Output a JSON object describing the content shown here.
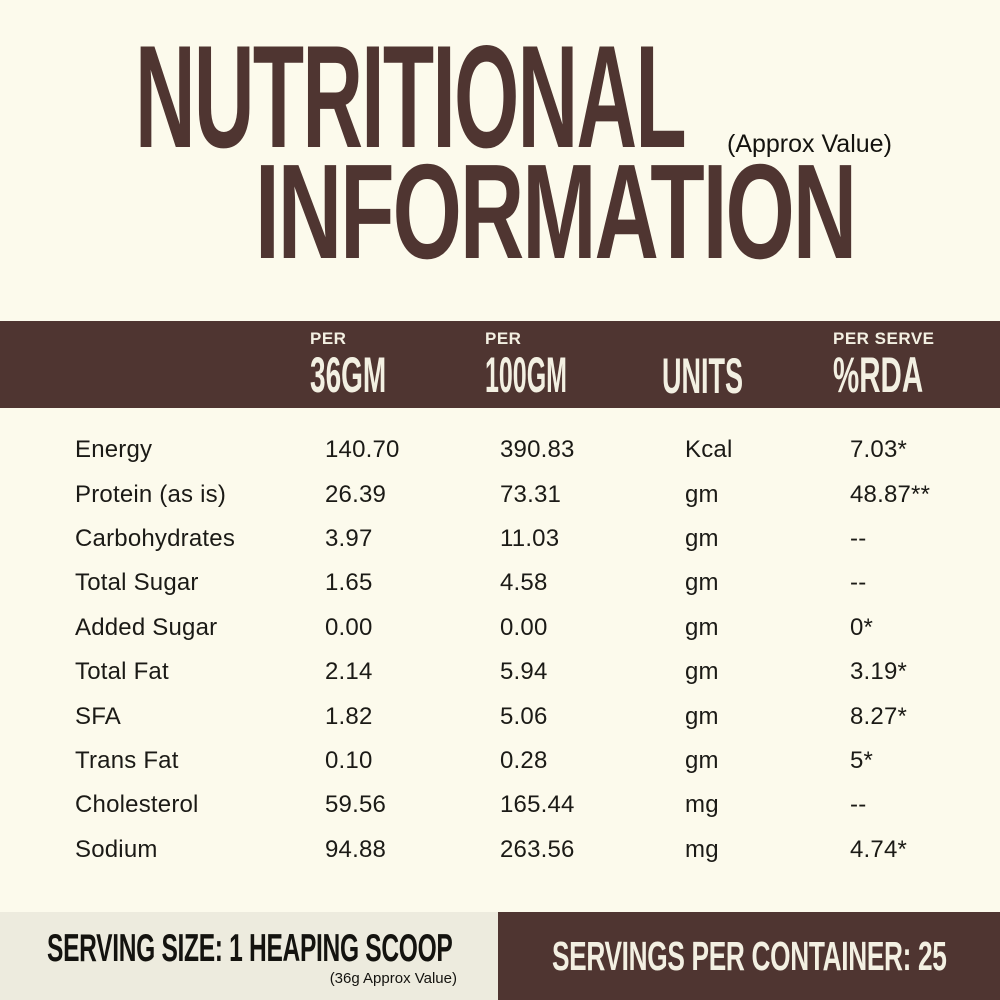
{
  "title": {
    "line1": "NUTRITIONAL",
    "line2": "INFORMATION",
    "approx_note": "(Approx Value)"
  },
  "table": {
    "headers": {
      "per36_top": "PER",
      "per36": "36GM",
      "per100_top": "PER",
      "per100": "100GM",
      "units": "UNITS",
      "rda_top": "PER SERVE",
      "rda": "%RDA"
    },
    "rows": [
      {
        "label": "Energy",
        "per36": "140.70",
        "per100": "390.83",
        "unit": "Kcal",
        "rda": "7.03*"
      },
      {
        "label": "Protein (as is)",
        "per36": "26.39",
        "per100": "73.31",
        "unit": "gm",
        "rda": "48.87**"
      },
      {
        "label": "Carbohydrates",
        "per36": "3.97",
        "per100": "11.03",
        "unit": "gm",
        "rda": "--"
      },
      {
        "label": "Total Sugar",
        "per36": "1.65",
        "per100": "4.58",
        "unit": "gm",
        "rda": "--"
      },
      {
        "label": "Added Sugar",
        "per36": "0.00",
        "per100": "0.00",
        "unit": "gm",
        "rda": "0*"
      },
      {
        "label": "Total Fat",
        "per36": "2.14",
        "per100": "5.94",
        "unit": "gm",
        "rda": "3.19*"
      },
      {
        "label": "SFA",
        "per36": "1.82",
        "per100": "5.06",
        "unit": "gm",
        "rda": "8.27*"
      },
      {
        "label": "Trans Fat",
        "per36": "0.10",
        "per100": "0.28",
        "unit": "gm",
        "rda": "5*"
      },
      {
        "label": "Cholesterol",
        "per36": "59.56",
        "per100": "165.44",
        "unit": "mg",
        "rda": "--"
      },
      {
        "label": "Sodium",
        "per36": "94.88",
        "per100": "263.56",
        "unit": "mg",
        "rda": "4.74*"
      }
    ]
  },
  "footer": {
    "serving_size": "SERVING SIZE: 1 HEAPING SCOOP",
    "serving_note": "(36g Approx Value)",
    "servings_per_container": "SERVINGS PER CONTAINER: 25"
  },
  "colors": {
    "brown": "#4f3531",
    "cream_background": "#fcfaec",
    "footer_strip": "#edebde",
    "cream_text": "#f3f0e2",
    "dark_text": "#14130f"
  }
}
